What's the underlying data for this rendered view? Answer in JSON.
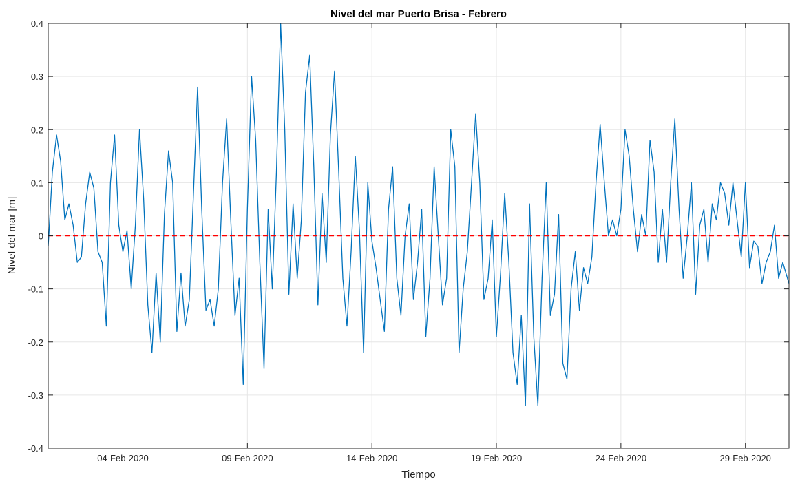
{
  "chart_data": {
    "type": "line",
    "title": "Nivel del mar Puerto Brisa - Febrero",
    "xlabel": "Tiempo",
    "ylabel": "Nivel del mar [m]",
    "xlim": [
      "2020-02-01T00:00",
      "2020-03-01T18:00"
    ],
    "ylim": [
      -0.4,
      0.4
    ],
    "xticks": [
      {
        "value": "2020-02-04",
        "label": "04-Feb-2020"
      },
      {
        "value": "2020-02-09",
        "label": "09-Feb-2020"
      },
      {
        "value": "2020-02-14",
        "label": "14-Feb-2020"
      },
      {
        "value": "2020-02-19",
        "label": "19-Feb-2020"
      },
      {
        "value": "2020-02-24",
        "label": "24-Feb-2020"
      },
      {
        "value": "2020-02-29",
        "label": "29-Feb-2020"
      }
    ],
    "yticks": [
      {
        "value": -0.4,
        "label": "-0.4"
      },
      {
        "value": -0.3,
        "label": "-0.3"
      },
      {
        "value": -0.2,
        "label": "-0.2"
      },
      {
        "value": -0.1,
        "label": "-0.1"
      },
      {
        "value": 0,
        "label": "0"
      },
      {
        "value": 0.1,
        "label": "0.1"
      },
      {
        "value": 0.2,
        "label": "0.2"
      },
      {
        "value": 0.3,
        "label": "0.3"
      },
      {
        "value": 0.4,
        "label": "0.4"
      }
    ],
    "grid": true,
    "reference_line": {
      "y": 0,
      "color": "#ff0000",
      "style": "dashed"
    },
    "series": [
      {
        "color": "#0072bd",
        "points": [
          [
            "2020-02-01T00:00",
            -0.02
          ],
          [
            "2020-02-01T04:00",
            0.12
          ],
          [
            "2020-02-01T08:00",
            0.19
          ],
          [
            "2020-02-01T12:00",
            0.14
          ],
          [
            "2020-02-01T16:00",
            0.03
          ],
          [
            "2020-02-01T20:00",
            0.06
          ],
          [
            "2020-02-02T00:00",
            0.02
          ],
          [
            "2020-02-02T04:00",
            -0.05
          ],
          [
            "2020-02-02T08:00",
            -0.04
          ],
          [
            "2020-02-02T12:00",
            0.06
          ],
          [
            "2020-02-02T16:00",
            0.12
          ],
          [
            "2020-02-02T20:00",
            0.09
          ],
          [
            "2020-02-03T00:00",
            -0.03
          ],
          [
            "2020-02-03T04:00",
            -0.05
          ],
          [
            "2020-02-03T08:00",
            -0.17
          ],
          [
            "2020-02-03T12:00",
            0.1
          ],
          [
            "2020-02-03T16:00",
            0.19
          ],
          [
            "2020-02-03T20:00",
            0.02
          ],
          [
            "2020-02-04T00:00",
            -0.03
          ],
          [
            "2020-02-04T04:00",
            0.01
          ],
          [
            "2020-02-04T08:00",
            -0.1
          ],
          [
            "2020-02-04T12:00",
            0.02
          ],
          [
            "2020-02-04T16:00",
            0.2
          ],
          [
            "2020-02-04T20:00",
            0.07
          ],
          [
            "2020-02-05T00:00",
            -0.13
          ],
          [
            "2020-02-05T04:00",
            -0.22
          ],
          [
            "2020-02-05T08:00",
            -0.07
          ],
          [
            "2020-02-05T12:00",
            -0.2
          ],
          [
            "2020-02-05T16:00",
            0.04
          ],
          [
            "2020-02-05T20:00",
            0.16
          ],
          [
            "2020-02-06T00:00",
            0.1
          ],
          [
            "2020-02-06T04:00",
            -0.18
          ],
          [
            "2020-02-06T08:00",
            -0.07
          ],
          [
            "2020-02-06T12:00",
            -0.17
          ],
          [
            "2020-02-06T16:00",
            -0.12
          ],
          [
            "2020-02-06T20:00",
            0.08
          ],
          [
            "2020-02-07T00:00",
            0.28
          ],
          [
            "2020-02-07T04:00",
            0.05
          ],
          [
            "2020-02-07T08:00",
            -0.14
          ],
          [
            "2020-02-07T12:00",
            -0.12
          ],
          [
            "2020-02-07T16:00",
            -0.17
          ],
          [
            "2020-02-07T20:00",
            -0.1
          ],
          [
            "2020-02-08T00:00",
            0.1
          ],
          [
            "2020-02-08T04:00",
            0.22
          ],
          [
            "2020-02-08T08:00",
            0.03
          ],
          [
            "2020-02-08T12:00",
            -0.15
          ],
          [
            "2020-02-08T16:00",
            -0.08
          ],
          [
            "2020-02-08T20:00",
            -0.28
          ],
          [
            "2020-02-09T00:00",
            0.05
          ],
          [
            "2020-02-09T04:00",
            0.3
          ],
          [
            "2020-02-09T08:00",
            0.18
          ],
          [
            "2020-02-09T12:00",
            -0.05
          ],
          [
            "2020-02-09T16:00",
            -0.25
          ],
          [
            "2020-02-09T20:00",
            0.05
          ],
          [
            "2020-02-10T00:00",
            -0.1
          ],
          [
            "2020-02-10T04:00",
            0.12
          ],
          [
            "2020-02-10T08:00",
            0.4
          ],
          [
            "2020-02-10T12:00",
            0.2
          ],
          [
            "2020-02-10T16:00",
            -0.11
          ],
          [
            "2020-02-10T20:00",
            0.06
          ],
          [
            "2020-02-11T00:00",
            -0.08
          ],
          [
            "2020-02-11T04:00",
            0.03
          ],
          [
            "2020-02-11T08:00",
            0.27
          ],
          [
            "2020-02-11T12:00",
            0.34
          ],
          [
            "2020-02-11T16:00",
            0.13
          ],
          [
            "2020-02-11T20:00",
            -0.13
          ],
          [
            "2020-02-12T00:00",
            0.08
          ],
          [
            "2020-02-12T04:00",
            -0.05
          ],
          [
            "2020-02-12T08:00",
            0.19
          ],
          [
            "2020-02-12T12:00",
            0.31
          ],
          [
            "2020-02-12T16:00",
            0.12
          ],
          [
            "2020-02-12T20:00",
            -0.08
          ],
          [
            "2020-02-13T00:00",
            -0.17
          ],
          [
            "2020-02-13T04:00",
            -0.03
          ],
          [
            "2020-02-13T08:00",
            0.15
          ],
          [
            "2020-02-13T12:00",
            0.01
          ],
          [
            "2020-02-13T16:00",
            -0.22
          ],
          [
            "2020-02-13T20:00",
            0.1
          ],
          [
            "2020-02-14T00:00",
            -0.01
          ],
          [
            "2020-02-14T04:00",
            -0.06
          ],
          [
            "2020-02-14T08:00",
            -0.12
          ],
          [
            "2020-02-14T12:00",
            -0.18
          ],
          [
            "2020-02-14T16:00",
            0.05
          ],
          [
            "2020-02-14T20:00",
            0.13
          ],
          [
            "2020-02-15T00:00",
            -0.08
          ],
          [
            "2020-02-15T04:00",
            -0.15
          ],
          [
            "2020-02-15T08:00",
            0.0
          ],
          [
            "2020-02-15T12:00",
            0.06
          ],
          [
            "2020-02-15T16:00",
            -0.12
          ],
          [
            "2020-02-15T20:00",
            -0.05
          ],
          [
            "2020-02-16T00:00",
            0.05
          ],
          [
            "2020-02-16T04:00",
            -0.19
          ],
          [
            "2020-02-16T08:00",
            -0.08
          ],
          [
            "2020-02-16T12:00",
            0.13
          ],
          [
            "2020-02-16T16:00",
            0.0
          ],
          [
            "2020-02-16T20:00",
            -0.13
          ],
          [
            "2020-02-17T00:00",
            -0.08
          ],
          [
            "2020-02-17T04:00",
            0.2
          ],
          [
            "2020-02-17T08:00",
            0.13
          ],
          [
            "2020-02-17T12:00",
            -0.22
          ],
          [
            "2020-02-17T16:00",
            -0.1
          ],
          [
            "2020-02-17T20:00",
            -0.03
          ],
          [
            "2020-02-18T00:00",
            0.1
          ],
          [
            "2020-02-18T04:00",
            0.23
          ],
          [
            "2020-02-18T08:00",
            0.1
          ],
          [
            "2020-02-18T12:00",
            -0.12
          ],
          [
            "2020-02-18T16:00",
            -0.08
          ],
          [
            "2020-02-18T20:00",
            0.03
          ],
          [
            "2020-02-19T00:00",
            -0.19
          ],
          [
            "2020-02-19T04:00",
            -0.07
          ],
          [
            "2020-02-19T08:00",
            0.08
          ],
          [
            "2020-02-19T12:00",
            -0.05
          ],
          [
            "2020-02-19T16:00",
            -0.22
          ],
          [
            "2020-02-19T20:00",
            -0.28
          ],
          [
            "2020-02-20T00:00",
            -0.15
          ],
          [
            "2020-02-20T04:00",
            -0.32
          ],
          [
            "2020-02-20T08:00",
            0.06
          ],
          [
            "2020-02-20T12:00",
            -0.19
          ],
          [
            "2020-02-20T16:00",
            -0.32
          ],
          [
            "2020-02-20T20:00",
            -0.08
          ],
          [
            "2020-02-21T00:00",
            0.1
          ],
          [
            "2020-02-21T04:00",
            -0.15
          ],
          [
            "2020-02-21T08:00",
            -0.11
          ],
          [
            "2020-02-21T12:00",
            0.04
          ],
          [
            "2020-02-21T16:00",
            -0.24
          ],
          [
            "2020-02-21T20:00",
            -0.27
          ],
          [
            "2020-02-22T00:00",
            -0.1
          ],
          [
            "2020-02-22T04:00",
            -0.03
          ],
          [
            "2020-02-22T08:00",
            -0.14
          ],
          [
            "2020-02-22T12:00",
            -0.06
          ],
          [
            "2020-02-22T16:00",
            -0.09
          ],
          [
            "2020-02-22T20:00",
            -0.04
          ],
          [
            "2020-02-23T00:00",
            0.1
          ],
          [
            "2020-02-23T04:00",
            0.21
          ],
          [
            "2020-02-23T08:00",
            0.1
          ],
          [
            "2020-02-23T12:00",
            0.0
          ],
          [
            "2020-02-23T16:00",
            0.03
          ],
          [
            "2020-02-23T20:00",
            0.0
          ],
          [
            "2020-02-24T00:00",
            0.05
          ],
          [
            "2020-02-24T04:00",
            0.2
          ],
          [
            "2020-02-24T08:00",
            0.15
          ],
          [
            "2020-02-24T12:00",
            0.05
          ],
          [
            "2020-02-24T16:00",
            -0.03
          ],
          [
            "2020-02-24T20:00",
            0.04
          ],
          [
            "2020-02-25T00:00",
            0.0
          ],
          [
            "2020-02-25T04:00",
            0.18
          ],
          [
            "2020-02-25T08:00",
            0.12
          ],
          [
            "2020-02-25T12:00",
            -0.05
          ],
          [
            "2020-02-25T16:00",
            0.05
          ],
          [
            "2020-02-25T20:00",
            -0.05
          ],
          [
            "2020-02-26T00:00",
            0.1
          ],
          [
            "2020-02-26T04:00",
            0.22
          ],
          [
            "2020-02-26T08:00",
            0.05
          ],
          [
            "2020-02-26T12:00",
            -0.08
          ],
          [
            "2020-02-26T16:00",
            0.0
          ],
          [
            "2020-02-26T20:00",
            0.1
          ],
          [
            "2020-02-27T00:00",
            -0.11
          ],
          [
            "2020-02-27T04:00",
            0.02
          ],
          [
            "2020-02-27T08:00",
            0.05
          ],
          [
            "2020-02-27T12:00",
            -0.05
          ],
          [
            "2020-02-27T16:00",
            0.06
          ],
          [
            "2020-02-27T20:00",
            0.03
          ],
          [
            "2020-02-28T00:00",
            0.1
          ],
          [
            "2020-02-28T04:00",
            0.08
          ],
          [
            "2020-02-28T08:00",
            0.02
          ],
          [
            "2020-02-28T12:00",
            0.1
          ],
          [
            "2020-02-28T16:00",
            0.03
          ],
          [
            "2020-02-28T20:00",
            -0.04
          ],
          [
            "2020-02-29T00:00",
            0.1
          ],
          [
            "2020-02-29T04:00",
            -0.06
          ],
          [
            "2020-02-29T08:00",
            -0.01
          ],
          [
            "2020-02-29T12:00",
            -0.02
          ],
          [
            "2020-02-29T16:00",
            -0.09
          ],
          [
            "2020-02-29T20:00",
            -0.05
          ],
          [
            "2020-03-01T00:00",
            -0.03
          ],
          [
            "2020-03-01T04:00",
            0.02
          ],
          [
            "2020-03-01T08:00",
            -0.08
          ],
          [
            "2020-03-01T12:00",
            -0.05
          ],
          [
            "2020-03-01T18:00",
            -0.09
          ]
        ]
      }
    ]
  }
}
